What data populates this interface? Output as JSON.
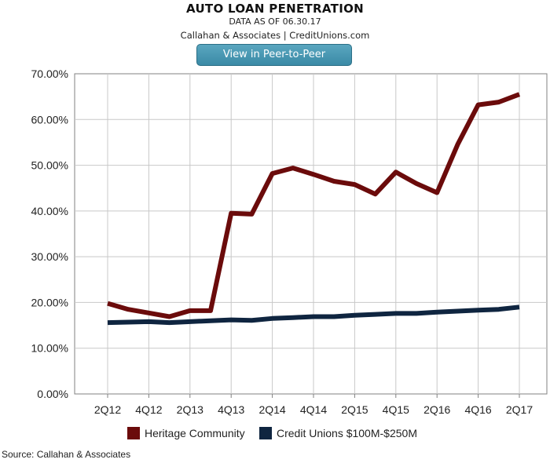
{
  "header": {
    "title": "AUTO LOAN PENETRATION",
    "subtitle": "DATA AS OF 06.30.17",
    "credit": "Callahan & Associates | CreditUnions.com",
    "button_label": "View in Peer-to-Peer"
  },
  "footer": {
    "source": "Source: Callahan & Associates"
  },
  "colors": {
    "heritage": "#6b0b0b",
    "peer": "#0f2540",
    "grid": "#c8c8c8",
    "axis": "#808080"
  },
  "chart_data": {
    "type": "line",
    "x": [
      "2Q12",
      "3Q12",
      "4Q12",
      "1Q13",
      "2Q13",
      "3Q13",
      "4Q13",
      "1Q14",
      "2Q14",
      "3Q14",
      "4Q14",
      "1Q15",
      "2Q15",
      "3Q15",
      "4Q15",
      "1Q16",
      "2Q16",
      "3Q16",
      "4Q16",
      "1Q17",
      "2Q17"
    ],
    "x_tick_labels": [
      "2Q12",
      "4Q12",
      "2Q13",
      "4Q13",
      "2Q14",
      "4Q14",
      "2Q15",
      "4Q15",
      "2Q16",
      "4Q16",
      "2Q17"
    ],
    "y_tick_labels": [
      "0.00%",
      "10.00%",
      "20.00%",
      "30.00%",
      "40.00%",
      "50.00%",
      "60.00%",
      "70.00%"
    ],
    "ylim": [
      0,
      70
    ],
    "grid": "horizontal and vertical",
    "legend_position": "bottom",
    "series": [
      {
        "name": "Heritage Community",
        "values": [
          19.8,
          18.5,
          17.7,
          16.9,
          18.2,
          18.2,
          39.5,
          39.3,
          48.2,
          49.4,
          48.0,
          46.5,
          45.8,
          43.7,
          48.5,
          46.0,
          44.0,
          54.5,
          63.2,
          63.8,
          65.5
        ]
      },
      {
        "name": "Credit Unions $100M-$250M",
        "values": [
          15.6,
          15.7,
          15.8,
          15.6,
          15.8,
          16.0,
          16.2,
          16.1,
          16.5,
          16.7,
          16.9,
          16.9,
          17.2,
          17.4,
          17.6,
          17.6,
          17.9,
          18.1,
          18.3,
          18.5,
          19.0
        ]
      }
    ]
  }
}
